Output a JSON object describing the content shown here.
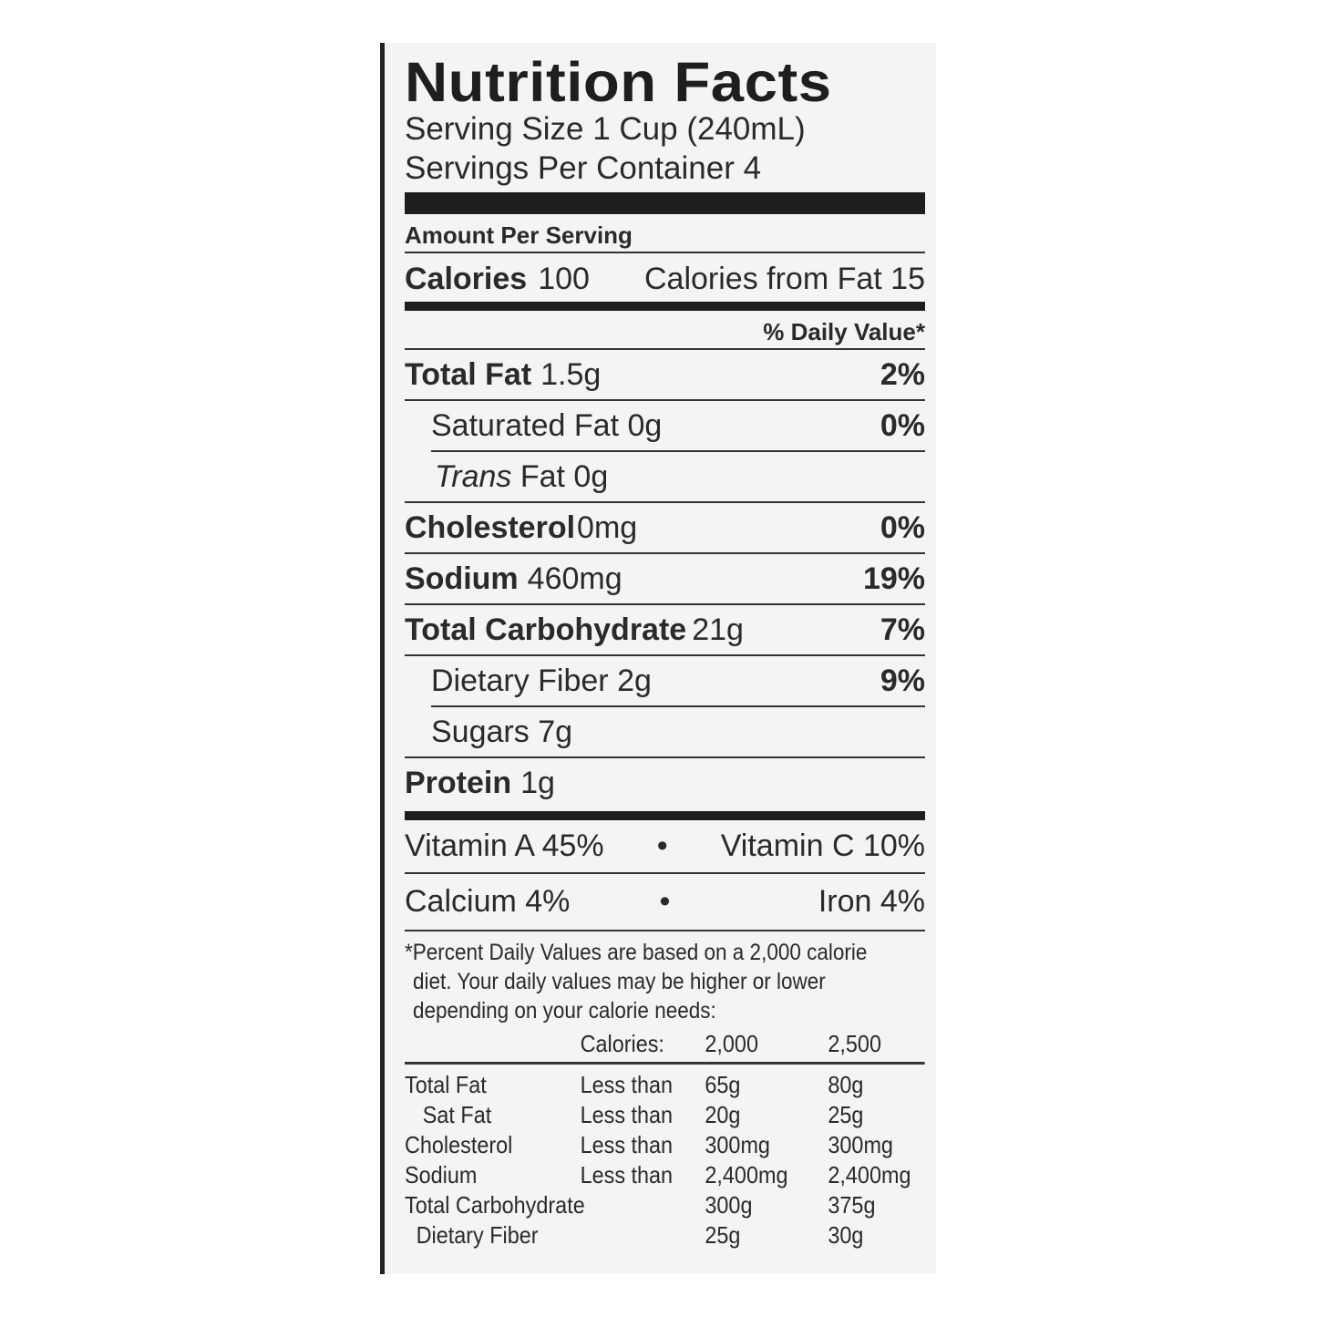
{
  "label": {
    "title": "Nutrition Facts",
    "serving_size": "Serving Size 1 Cup (240mL)",
    "servings_per_container": "Servings Per Container 4",
    "amount_per_serving": "Amount Per Serving",
    "calories_label": "Calories",
    "calories_value": "100",
    "calories_from_fat": "Calories from Fat 15",
    "daily_value_header": "% Daily Value*",
    "nutrients": [
      {
        "name": "Total Fat",
        "amount": "1.5g",
        "dv": "2%"
      },
      {
        "name": "Saturated Fat",
        "amount": "0g",
        "dv": "0%"
      },
      {
        "name_italic": "Trans",
        "name": "Fat",
        "amount": "0g"
      },
      {
        "name": "Cholesterol",
        "amount": "0mg",
        "dv": "0%"
      },
      {
        "name": "Sodium",
        "amount": "460mg",
        "dv": "19%"
      },
      {
        "name": "Total Carbohydrate",
        "amount": "21g",
        "dv": "7%"
      },
      {
        "name": "Dietary Fiber",
        "amount": "2g",
        "dv": "9%"
      },
      {
        "name": "Sugars",
        "amount": "7g"
      },
      {
        "name": "Protein",
        "amount": "1g"
      }
    ],
    "vitamins": {
      "vitamin_a": "Vitamin A 45%",
      "vitamin_c": "Vitamin C 10%",
      "calcium": "Calcium 4%",
      "iron": "Iron 4%",
      "bullet": "•"
    },
    "footnote": {
      "line1": "*Percent Daily Values are based on a 2,000 calorie",
      "line2": "diet. Your daily values may be higher or lower",
      "line3": "depending on your calorie needs:",
      "header": [
        "",
        "Calories:",
        "2,000",
        "2,500"
      ],
      "rows": [
        [
          "Total Fat",
          "Less than",
          "65g",
          "80g"
        ],
        [
          "Sat Fat",
          "Less than",
          "20g",
          "25g"
        ],
        [
          "Cholesterol",
          "Less than",
          "300mg",
          "300mg"
        ],
        [
          "Sodium",
          "Less than",
          "2,400mg",
          "2,400mg"
        ],
        [
          "Total Carbohydrate",
          "",
          "300g",
          "375g"
        ],
        [
          "Dietary Fiber",
          "",
          "25g",
          "30g"
        ]
      ]
    }
  }
}
